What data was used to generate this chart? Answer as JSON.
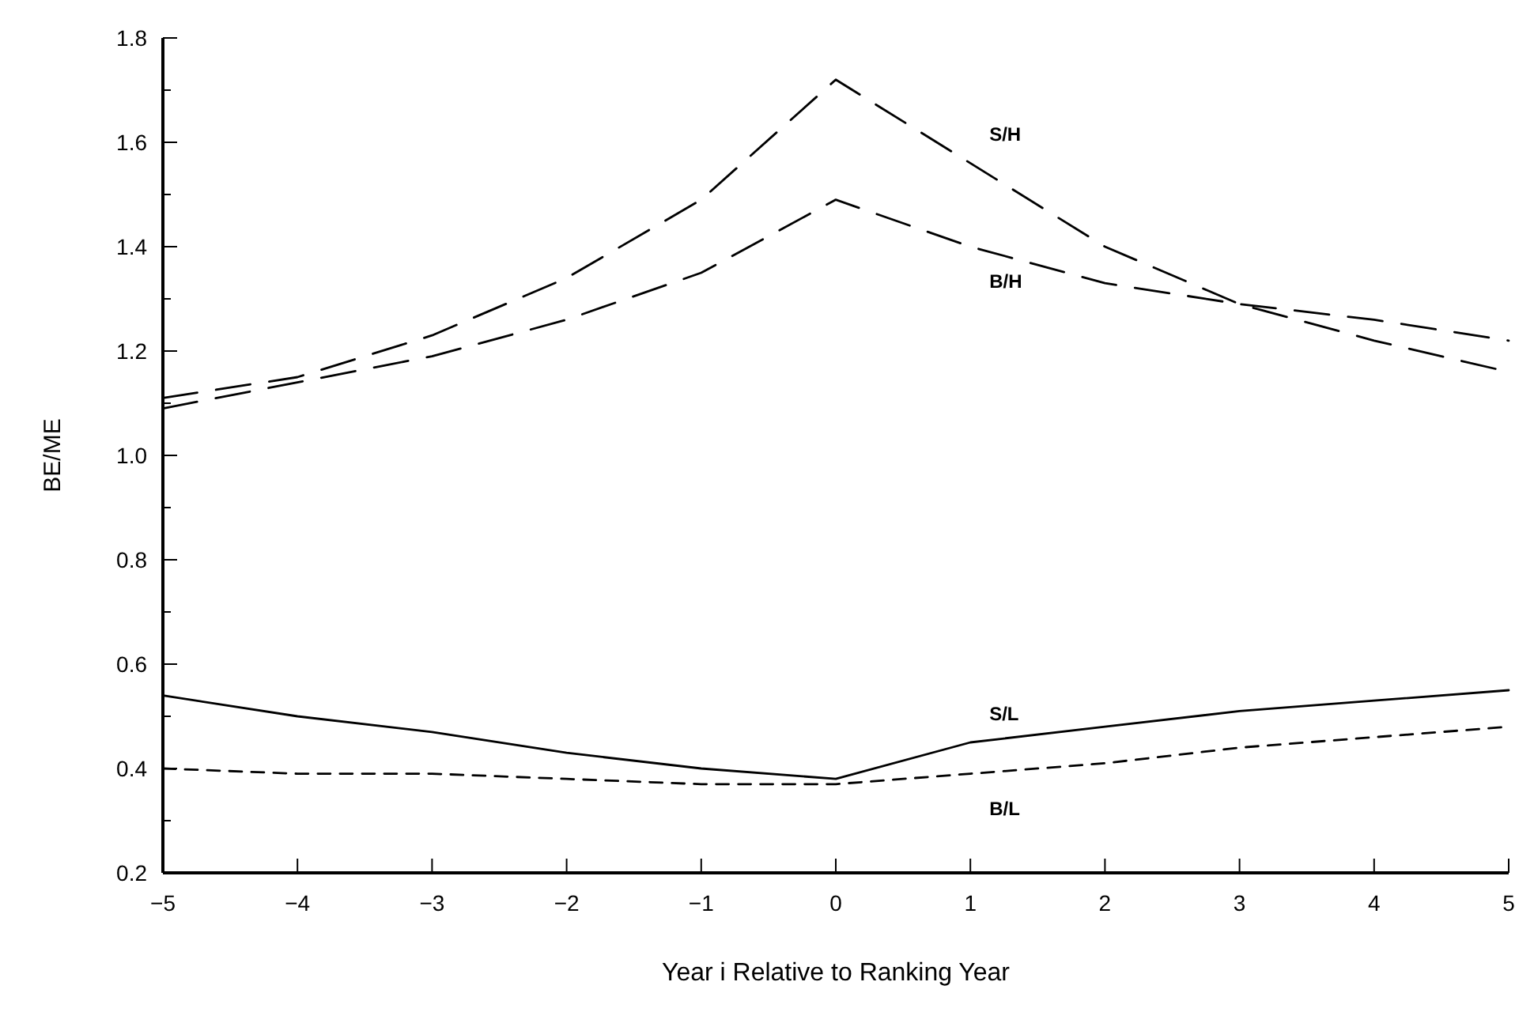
{
  "chart_data": {
    "type": "line",
    "xlabel": "Year i Relative to Ranking Year",
    "ylabel": "BE/ME",
    "x": [
      -5,
      -4,
      -3,
      -2,
      -1,
      0,
      1,
      2,
      3,
      4,
      5
    ],
    "xlim": [
      -5,
      5
    ],
    "xticks": [
      {
        "value": -5,
        "label": "−5"
      },
      {
        "value": -4,
        "label": "−4"
      },
      {
        "value": -3,
        "label": "−3"
      },
      {
        "value": -2,
        "label": "−2"
      },
      {
        "value": -1,
        "label": "−1"
      },
      0,
      1,
      2,
      3,
      4,
      5
    ],
    "ylim": [
      0.2,
      1.8
    ],
    "yticks": [
      0.2,
      {
        "value": 0.3,
        "label": null
      },
      0.4,
      {
        "value": 0.5,
        "label": null
      },
      0.6,
      {
        "value": 0.7,
        "label": null
      },
      0.8,
      {
        "value": 0.9,
        "label": null
      },
      {
        "value": 1,
        "label": "1.0"
      },
      {
        "value": 1.1,
        "label": null
      },
      1.2,
      {
        "value": 1.3,
        "label": null
      },
      1.4,
      {
        "value": 1.5,
        "label": null
      },
      1.6,
      {
        "value": 1.7,
        "label": null
      },
      1.8
    ],
    "grid": false,
    "legend": false,
    "marker": "none",
    "series": [
      {
        "name": "S/H",
        "color": "#000000",
        "line_style": "dashed",
        "values": [
          1.11,
          1.15,
          1.23,
          1.34,
          1.49,
          1.72,
          1.56,
          1.4,
          1.29,
          1.22,
          1.16
        ]
      },
      {
        "name": "B/H",
        "color": "#000000",
        "line_style": "dashed",
        "values": [
          1.09,
          1.14,
          1.19,
          1.26,
          1.35,
          1.49,
          1.4,
          1.33,
          1.29,
          1.26,
          1.22
        ]
      },
      {
        "name": "S/L",
        "color": "#000000",
        "line_style": "solid",
        "values": [
          0.54,
          0.5,
          0.47,
          0.43,
          0.4,
          0.38,
          0.45,
          0.48,
          0.51,
          0.53,
          0.55
        ]
      },
      {
        "name": "B/L",
        "color": "#000000",
        "line_style": "dotted",
        "values": [
          0.4,
          0.39,
          0.39,
          0.38,
          0.37,
          0.37,
          0.39,
          0.41,
          0.44,
          0.46,
          0.48
        ]
      }
    ]
  }
}
